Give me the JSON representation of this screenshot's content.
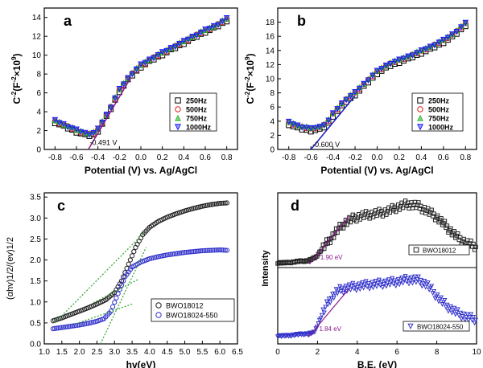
{
  "chart_data": [
    {
      "id": "a",
      "type": "scatter",
      "panel_label": "a",
      "xlabel": "Potential (V) vs. Ag/AgCl",
      "ylabel_main": "C",
      "ylabel_sup1": "-2",
      "ylabel_mid": "(F",
      "ylabel_sup2": "-2",
      "ylabel_mid2": "×10",
      "ylabel_sup3": "9",
      "ylabel_end": ")",
      "xlim": [
        -0.9,
        0.9
      ],
      "ylim": [
        0,
        15
      ],
      "xticks": [
        -0.8,
        -0.6,
        -0.4,
        -0.2,
        0.0,
        0.2,
        0.4,
        0.6,
        0.8
      ],
      "xtick_labels": [
        "-0.8",
        "-0.6",
        "-0.4",
        "-0.2",
        "0.0",
        "0.2",
        "0.4",
        "0.6",
        "0.8"
      ],
      "yticks": [
        0,
        2,
        4,
        6,
        8,
        10,
        12,
        14
      ],
      "ytick_labels": [
        "0",
        "2",
        "4",
        "6",
        "8",
        "10",
        "12",
        "14"
      ],
      "annotation": "-0.491 V",
      "annotation_x": -0.491,
      "annotation_y": 1.3,
      "fit_line": {
        "x": [
          -0.49,
          -0.1
        ],
        "y": [
          0,
          7.5
        ],
        "color": "#8b1a8b"
      },
      "legend_position": "center-right",
      "curve": {
        "x": [
          -0.8,
          -0.7,
          -0.6,
          -0.5,
          -0.45,
          -0.4,
          -0.3,
          -0.2,
          -0.1,
          0.0,
          0.1,
          0.2,
          0.3,
          0.4,
          0.5,
          0.6,
          0.7,
          0.8
        ],
        "y": [
          3.0,
          2.5,
          2.0,
          1.6,
          1.6,
          2.1,
          4.0,
          6.3,
          7.8,
          8.9,
          9.6,
          10.2,
          10.8,
          11.4,
          12.0,
          12.6,
          13.1,
          13.8
        ]
      },
      "series": [
        {
          "name": "250Hz",
          "marker": "square",
          "color": "#000000",
          "offset": -0.15
        },
        {
          "name": "500Hz",
          "marker": "circle",
          "color": "#e0201a",
          "offset": 0.0
        },
        {
          "name": "750Hz",
          "marker": "triangle-up",
          "color": "#1fb31f",
          "offset": 0.1
        },
        {
          "name": "1000Hz",
          "marker": "triangle-down",
          "color": "#1a1aff",
          "offset": 0.05
        }
      ]
    },
    {
      "id": "b",
      "type": "scatter",
      "panel_label": "b",
      "xlabel": "Potential (V) vs. Ag/AgCl",
      "ylabel_main": "C",
      "ylabel_sup1": "-2",
      "ylabel_mid": "(F",
      "ylabel_sup2": "-2",
      "ylabel_mid2": "×10",
      "ylabel_sup3": "9",
      "ylabel_end": ")",
      "xlim": [
        -0.9,
        0.9
      ],
      "ylim": [
        0,
        20
      ],
      "xticks": [
        -0.8,
        -0.6,
        -0.4,
        -0.2,
        0.0,
        0.2,
        0.4,
        0.6,
        0.8
      ],
      "xtick_labels": [
        "-0.8",
        "-0.6",
        "-0.4",
        "-0.2",
        "0.0",
        "0.2",
        "0.4",
        "0.6",
        "0.8"
      ],
      "yticks": [
        0,
        2,
        4,
        6,
        8,
        10,
        12,
        14,
        16,
        18
      ],
      "ytick_labels": [
        "0",
        "2",
        "4",
        "6",
        "8",
        "10",
        "12",
        "14",
        "16",
        "18"
      ],
      "annotation": "-0.600 V",
      "annotation_x": -0.6,
      "annotation_y": 1.5,
      "fit_line": {
        "x": [
          -0.6,
          -0.2
        ],
        "y": [
          0,
          7.6
        ],
        "color": "#1a1acc"
      },
      "legend_position": "center-right",
      "curve": {
        "x": [
          -0.8,
          -0.7,
          -0.6,
          -0.5,
          -0.45,
          -0.4,
          -0.3,
          -0.2,
          -0.1,
          0.0,
          0.1,
          0.2,
          0.3,
          0.4,
          0.5,
          0.6,
          0.7,
          0.8
        ],
        "y": [
          3.8,
          3.2,
          2.9,
          3.2,
          3.8,
          5.0,
          6.8,
          8.0,
          9.5,
          11.0,
          12.0,
          12.6,
          13.2,
          13.9,
          14.6,
          15.4,
          16.4,
          17.8
        ]
      },
      "series": [
        {
          "name": "250Hz",
          "marker": "square",
          "color": "#000000",
          "offset": -0.3
        },
        {
          "name": "500Hz",
          "marker": "circle",
          "color": "#e0201a",
          "offset": 0.0
        },
        {
          "name": "750Hz",
          "marker": "triangle-up",
          "color": "#1fb31f",
          "offset": 0.15
        },
        {
          "name": "1000Hz",
          "marker": "triangle-down",
          "color": "#1a1aff",
          "offset": 0.05
        }
      ]
    },
    {
      "id": "c",
      "type": "scatter",
      "panel_label": "c",
      "xlabel": "hv(eV)",
      "ylabel": "(αhv)1/2/(ev)1/2",
      "xlim": [
        1.0,
        6.5
      ],
      "ylim": [
        0.0,
        3.6
      ],
      "xticks": [
        1.0,
        1.5,
        2.0,
        2.5,
        3.0,
        3.5,
        4.0,
        4.5,
        5.0,
        5.5,
        6.0,
        6.5
      ],
      "xtick_labels": [
        "1.0",
        "1.5",
        "2.0",
        "2.5",
        "3.0",
        "3.5",
        "4.0",
        "4.5",
        "5.0",
        "5.5",
        "6.0",
        "6.5"
      ],
      "yticks": [
        0.0,
        0.5,
        1.0,
        1.5,
        2.0,
        2.5,
        3.0,
        3.5
      ],
      "ytick_labels": [
        "0.0",
        "0.5",
        "1.0",
        "1.5",
        "2.0",
        "2.5",
        "3.0",
        "3.5"
      ],
      "legend_position": "bottom-right",
      "series": [
        {
          "name": "BWO18012",
          "marker": "circle-open",
          "color": "#222222",
          "x": [
            1.25,
            1.5,
            1.75,
            2.0,
            2.25,
            2.5,
            2.75,
            3.0,
            3.2,
            3.4,
            3.6,
            3.8,
            4.0,
            4.25,
            4.5,
            4.75,
            5.0,
            5.25,
            5.5,
            5.75,
            6.0,
            6.2
          ],
          "y": [
            0.55,
            0.62,
            0.7,
            0.78,
            0.86,
            0.95,
            1.05,
            1.22,
            1.5,
            1.9,
            2.3,
            2.6,
            2.78,
            2.92,
            3.02,
            3.1,
            3.17,
            3.23,
            3.28,
            3.32,
            3.35,
            3.36
          ]
        },
        {
          "name": "BWO18024-550",
          "marker": "circle-open",
          "color": "#3333cc",
          "x": [
            1.25,
            1.5,
            1.75,
            2.0,
            2.25,
            2.5,
            2.7,
            2.9,
            3.1,
            3.3,
            3.5,
            3.75,
            4.0,
            4.25,
            4.5,
            4.75,
            5.0,
            5.25,
            5.5,
            5.75,
            6.0,
            6.2
          ],
          "y": [
            0.36,
            0.39,
            0.42,
            0.45,
            0.49,
            0.54,
            0.6,
            0.78,
            1.2,
            1.6,
            1.83,
            1.95,
            2.03,
            2.08,
            2.12,
            2.15,
            2.18,
            2.2,
            2.22,
            2.23,
            2.24,
            2.23
          ]
        }
      ],
      "tangent_lines": [
        {
          "x": [
            1.3,
            3.9
          ],
          "y": [
            0.5,
            2.7
          ],
          "color": "#3aa83a"
        },
        {
          "x": [
            2.4,
            3.7
          ],
          "y": [
            0.98,
            1.55
          ],
          "color": "#3aa83a"
        },
        {
          "x": [
            2.6,
            3.9
          ],
          "y": [
            -0.2,
            2.3
          ],
          "color": "#3aa83a"
        },
        {
          "x": [
            1.9,
            3.5
          ],
          "y": [
            0.48,
            0.95
          ],
          "color": "#3aa83a"
        }
      ]
    },
    {
      "id": "d",
      "type": "scatter",
      "panel_label": "d",
      "xlabel": "B.E. (eV)",
      "ylabel": "Intensity",
      "xlim": [
        0,
        10
      ],
      "xticks": [
        0,
        2,
        4,
        6,
        8,
        10
      ],
      "xtick_labels": [
        "0",
        "2",
        "4",
        "6",
        "8",
        "10"
      ],
      "legend_position": "right",
      "subplots": [
        {
          "name": "BWO18012",
          "marker": "square-open",
          "color": "#222222",
          "annotation": "1.90 eV",
          "annotation_x": 1.9,
          "x": [
            0,
            0.5,
            1.0,
            1.5,
            1.9,
            2.2,
            2.6,
            3.0,
            3.4,
            3.8,
            4.2,
            4.8,
            5.4,
            6.0,
            6.5,
            7.0,
            7.5,
            8.0,
            8.5,
            9.0,
            9.5,
            10.0
          ],
          "y": [
            0.0,
            0.0,
            0.02,
            0.03,
            0.08,
            0.2,
            0.35,
            0.5,
            0.62,
            0.68,
            0.72,
            0.75,
            0.78,
            0.85,
            0.9,
            0.88,
            0.8,
            0.7,
            0.55,
            0.4,
            0.3,
            0.25
          ]
        },
        {
          "name": "BWO18024-550",
          "marker": "triangle-down-open",
          "color": "#3333cc",
          "annotation": "1.84 eV",
          "annotation_x": 1.84,
          "x": [
            0,
            0.5,
            1.0,
            1.5,
            1.84,
            2.2,
            2.6,
            3.0,
            3.4,
            3.8,
            4.2,
            4.8,
            5.4,
            6.0,
            6.5,
            7.0,
            7.5,
            8.0,
            8.5,
            9.0,
            9.5,
            10.0
          ],
          "y": [
            0.0,
            0.0,
            0.02,
            0.03,
            0.05,
            0.3,
            0.55,
            0.68,
            0.72,
            0.74,
            0.76,
            0.78,
            0.8,
            0.82,
            0.85,
            0.85,
            0.78,
            0.6,
            0.45,
            0.35,
            0.28,
            0.25
          ]
        }
      ]
    }
  ],
  "colors": {
    "axis": "#000000",
    "fit_a": "#8b1a8b",
    "fit_b": "#1a1acc",
    "green": "#3aa83a"
  }
}
